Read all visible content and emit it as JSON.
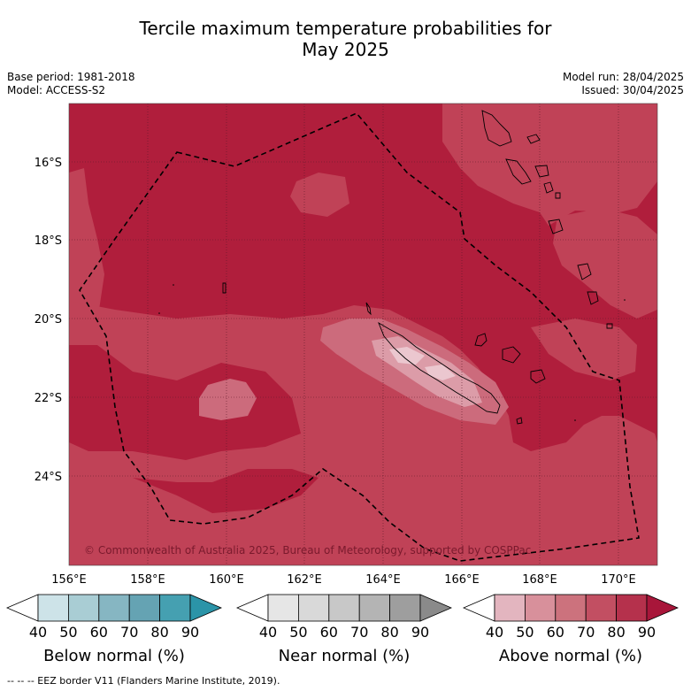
{
  "title_line1": "Tercile maximum temperature probabilities for",
  "title_line2": "May 2025",
  "base_period": "Base period: 1981-2018",
  "model": "Model: ACCESS-S2",
  "model_run": "Model run: 28/04/2025",
  "issued": "Issued: 30/04/2025",
  "copyright": "© Commonwealth of Australia 2025, Bureau of Meteorology, supported by COSPPac",
  "footer": "--  --  -- EEZ border V11 (Flanders Marine Institute, 2019).",
  "lon_ticks": [
    "156°E",
    "158°E",
    "160°E",
    "162°E",
    "164°E",
    "166°E",
    "168°E",
    "170°E"
  ],
  "lat_ticks": [
    "16°S",
    "18°S",
    "20°S",
    "22°S",
    "24°S"
  ],
  "colorbars": [
    {
      "label": "Below normal (%)",
      "ticks": [
        "40",
        "50",
        "60",
        "70",
        "80",
        "90"
      ],
      "colors": [
        "#ffffff",
        "#cde3e8",
        "#a9cdd4",
        "#86b6c2",
        "#65a3b3",
        "#45a0b1",
        "#2b94a8"
      ]
    },
    {
      "label": "Near normal (%)",
      "ticks": [
        "40",
        "50",
        "60",
        "70",
        "80",
        "90"
      ],
      "colors": [
        "#ffffff",
        "#e6e6e6",
        "#d9d9d9",
        "#c8c8c8",
        "#b4b4b4",
        "#9e9e9e",
        "#8a8a8a"
      ]
    },
    {
      "label": "Above normal (%)",
      "ticks": [
        "40",
        "50",
        "60",
        "70",
        "80",
        "90"
      ],
      "colors": [
        "#ffffff",
        "#e3b5bf",
        "#d8909b",
        "#cc727d",
        "#c24f62",
        "#b5314c",
        "#a8163a"
      ]
    }
  ],
  "colors": {
    "above_80": "#b01e3c",
    "above_70": "#c04257",
    "above_60": "#cc6b7c",
    "above_50": "#dc9ca8",
    "above_40": "#ebc7cf"
  }
}
